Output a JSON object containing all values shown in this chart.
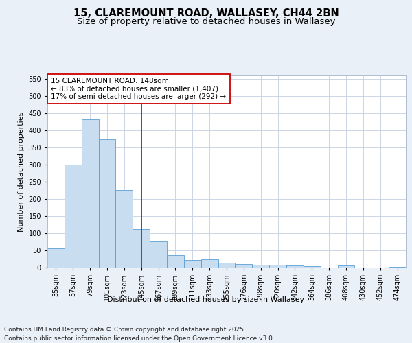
{
  "title": "15, CLAREMOUNT ROAD, WALLASEY, CH44 2BN",
  "subtitle": "Size of property relative to detached houses in Wallasey",
  "xlabel": "Distribution of detached houses by size in Wallasey",
  "ylabel": "Number of detached properties",
  "categories": [
    "35sqm",
    "57sqm",
    "79sqm",
    "101sqm",
    "123sqm",
    "145sqm",
    "167sqm",
    "189sqm",
    "211sqm",
    "233sqm",
    "255sqm",
    "276sqm",
    "298sqm",
    "320sqm",
    "342sqm",
    "364sqm",
    "386sqm",
    "408sqm",
    "430sqm",
    "452sqm",
    "474sqm"
  ],
  "values": [
    57,
    300,
    432,
    375,
    226,
    113,
    76,
    36,
    22,
    25,
    14,
    10,
    9,
    9,
    6,
    4,
    0,
    6,
    0,
    0,
    3
  ],
  "bar_color": "#c9ddf0",
  "bar_edge_color": "#5a9fd4",
  "vline_x": 5.0,
  "vline_color": "#cc0000",
  "annotation_line1": "15 CLAREMOUNT ROAD: 148sqm",
  "annotation_line2": "← 83% of detached houses are smaller (1,407)",
  "annotation_line3": "17% of semi-detached houses are larger (292) →",
  "annotation_box_color": "#ffffff",
  "annotation_box_edge": "#cc0000",
  "ylim": [
    0,
    560
  ],
  "yticks": [
    0,
    50,
    100,
    150,
    200,
    250,
    300,
    350,
    400,
    450,
    500,
    550
  ],
  "bg_color": "#eaf0f8",
  "plot_bg_color": "#ffffff",
  "footer": "Contains HM Land Registry data © Crown copyright and database right 2025.\nContains public sector information licensed under the Open Government Licence v3.0.",
  "title_fontsize": 10.5,
  "subtitle_fontsize": 9.5,
  "axis_label_fontsize": 8,
  "tick_fontsize": 7,
  "annotation_fontsize": 7.5,
  "footer_fontsize": 6.5
}
